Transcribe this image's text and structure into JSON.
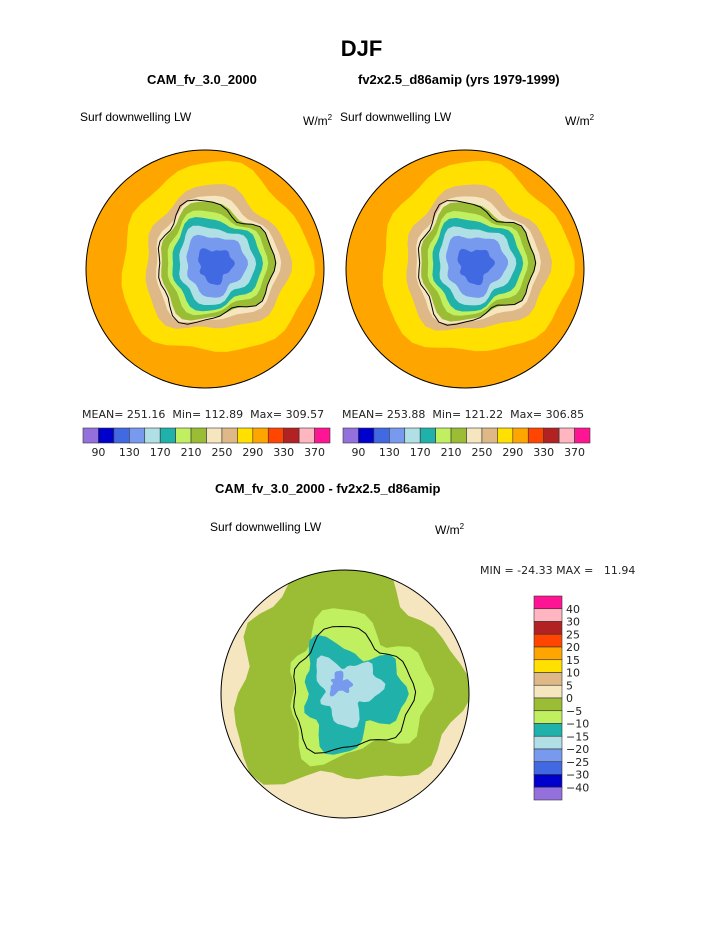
{
  "title": "DJF",
  "panels": [
    {
      "case": "CAM_fv_3.0_2000",
      "variable": "Surf downwelling LW",
      "units": "W/m",
      "units_exp": "2",
      "stats": {
        "mean_label": "MEAN=",
        "mean": "251.16",
        "min_label": "Min=",
        "min": "112.89",
        "max_label": "Max=",
        "max": "309.57"
      }
    },
    {
      "case": "fv2x2.5_d86amip (yrs 1979-1999)",
      "variable": "Surf downwelling LW",
      "units": "W/m",
      "units_exp": "2",
      "stats": {
        "mean_label": "MEAN=",
        "mean": "253.88",
        "min_label": "Min=",
        "min": "121.22",
        "max_label": "Max=",
        "max": "306.85"
      }
    }
  ],
  "diff": {
    "title": "CAM_fv_3.0_2000 - fv2x2.5_d86amip",
    "variable": "Surf downwelling LW",
    "units": "W/m",
    "units_exp": "2",
    "minmax": "MIN = -24.33 MAX =   11.94",
    "levels": [
      "40",
      "30",
      "25",
      "20",
      "15",
      "10",
      "5",
      "0",
      "−5",
      "−10",
      "−15",
      "−20",
      "−25",
      "−30",
      "−40"
    ],
    "colors": [
      "#ff1493",
      "#ffb6c1",
      "#b22222",
      "#ff4500",
      "#ffa500",
      "#ffe000",
      "#deb887",
      "#f5e6c0",
      "#9abd35",
      "#c0f060",
      "#20b2aa",
      "#b0e0e6",
      "#7799ee",
      "#4169e1",
      "#0000cd",
      "#9370db"
    ]
  },
  "abs_colorbar": {
    "colors": [
      "#9370db",
      "#0000cd",
      "#4169e1",
      "#7799ee",
      "#b0e0e6",
      "#20b2aa",
      "#c0f060",
      "#9abd35",
      "#f5e6c0",
      "#deb887",
      "#ffe000",
      "#ffa500",
      "#ff4500",
      "#b22222",
      "#ffb6c1",
      "#ff1493"
    ],
    "labels": [
      "90",
      "130",
      "170",
      "210",
      "250",
      "290",
      "330",
      "370"
    ]
  }
}
